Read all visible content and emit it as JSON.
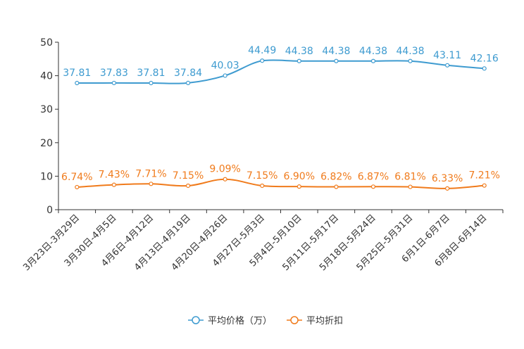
{
  "chart_data": {
    "type": "line",
    "categories": [
      "3月23日-3月29日",
      "3月30日-4月5日",
      "4月6日-4月12日",
      "4月13日-4月19日",
      "4月20日-4月26日",
      "4月27日-5月3日",
      "5月4日-5月10日",
      "5月11日-5月17日",
      "5月18日-5月24日",
      "5月25日-5月31日",
      "6月1日-6月7日",
      "6月8日-6月14日"
    ],
    "ylim": [
      0,
      50
    ],
    "yticks": [
      0,
      10,
      20,
      30,
      40,
      50
    ],
    "series": [
      {
        "name": "平均价格（万）",
        "color": "#3e9bd0",
        "values": [
          37.81,
          37.83,
          37.81,
          37.84,
          40.03,
          44.49,
          44.38,
          44.38,
          44.38,
          44.38,
          43.11,
          42.16
        ],
        "labels": [
          "37.81",
          "37.83",
          "37.81",
          "37.84",
          "40.03",
          "44.49",
          "44.38",
          "44.38",
          "44.38",
          "44.38",
          "43.11",
          "42.16"
        ]
      },
      {
        "name": "平均折扣",
        "color": "#f07b1c",
        "values": [
          6.74,
          7.43,
          7.71,
          7.15,
          9.09,
          7.15,
          6.9,
          6.82,
          6.87,
          6.81,
          6.33,
          7.21
        ],
        "labels": [
          "6.74%",
          "7.43%",
          "7.71%",
          "7.15%",
          "9.09%",
          "7.15%",
          "6.90%",
          "6.82%",
          "6.87%",
          "6.81%",
          "6.33%",
          "7.21%"
        ]
      }
    ],
    "title": "",
    "xlabel": "",
    "ylabel": "",
    "legend": "bottom-center"
  }
}
